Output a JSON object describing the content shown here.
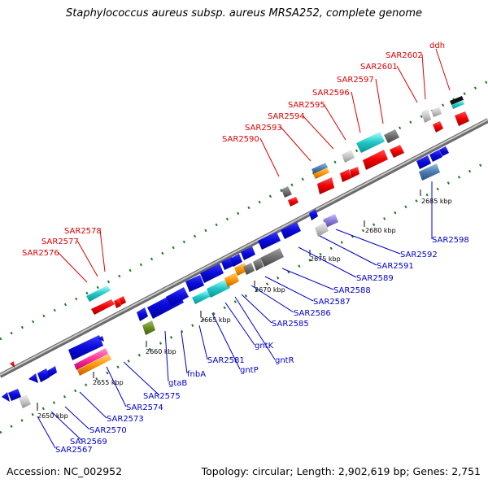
{
  "title": "Staphylococcus aureus subsp. aureus MRSA252, complete genome",
  "footer": {
    "accession": "Accession: NC_002952",
    "summary": "Topology: circular; Length: 2,902,619 bp; Genes: 2,751"
  },
  "scale_ticks": [
    "2650 kbp",
    "2655 kbp",
    "2660 kbp",
    "2665 kbp",
    "2670 kbp",
    "2675 kbp",
    "2680 kbp",
    "2685 kbp"
  ],
  "top_labels": [
    "SAR2576",
    "SAR2577",
    "SAR2578",
    "SAR2590",
    "SAR2593",
    "SAR2594",
    "SAR2595",
    "SAR2596",
    "SAR2597",
    "SAR2601",
    "SAR2602",
    "ddh"
  ],
  "bottom_labels": [
    "SAR2567",
    "SAR2569",
    "SAR2570",
    "SAR2573",
    "SAR2574",
    "SAR2575",
    "gtaB",
    "fnbA",
    "SAR2581",
    "gntP",
    "gntK",
    "gntR",
    "SAR2585",
    "SAR2586",
    "SAR2587",
    "SAR2588",
    "SAR2589",
    "SAR2591",
    "SAR2592",
    "SAR2598"
  ],
  "colors": {
    "forward_label": "#dd0000",
    "reverse_label": "#0000cc",
    "backbone": "#888888",
    "dots": "#1a7a1a",
    "gene_blue": "#0a0ad8",
    "gene_red": "#ee0000",
    "gene_cyan": "#20c8c8",
    "gene_gray": "#707070",
    "gene_orange": "#ff9900",
    "gene_green": "#6b8e23",
    "gene_pink": "#ff3399",
    "gene_purple": "#8a7ad8",
    "gene_lightgray": "#c8c8c8",
    "gene_steel": "#4a7cb0"
  }
}
